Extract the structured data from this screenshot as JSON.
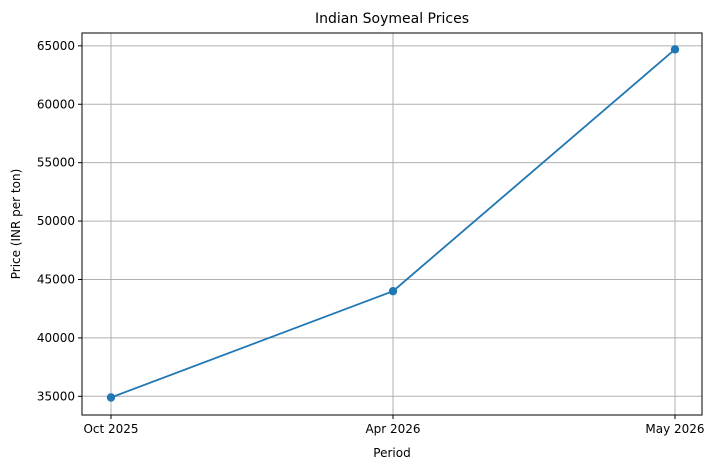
{
  "chart_data": {
    "type": "line",
    "title": "Indian Soymeal Prices",
    "xlabel": "Period",
    "ylabel": "Price (INR per ton)",
    "categories": [
      "Oct 2025",
      "Apr 2026",
      "May 2026"
    ],
    "series": [
      {
        "values": [
          34900,
          44000,
          64700
        ],
        "color": "#1f77b4",
        "marker": "circle"
      }
    ],
    "ylim": [
      33400,
      66100
    ],
    "yticks": [
      35000,
      40000,
      45000,
      50000,
      55000,
      60000,
      65000
    ],
    "grid": true,
    "legend": "none"
  }
}
